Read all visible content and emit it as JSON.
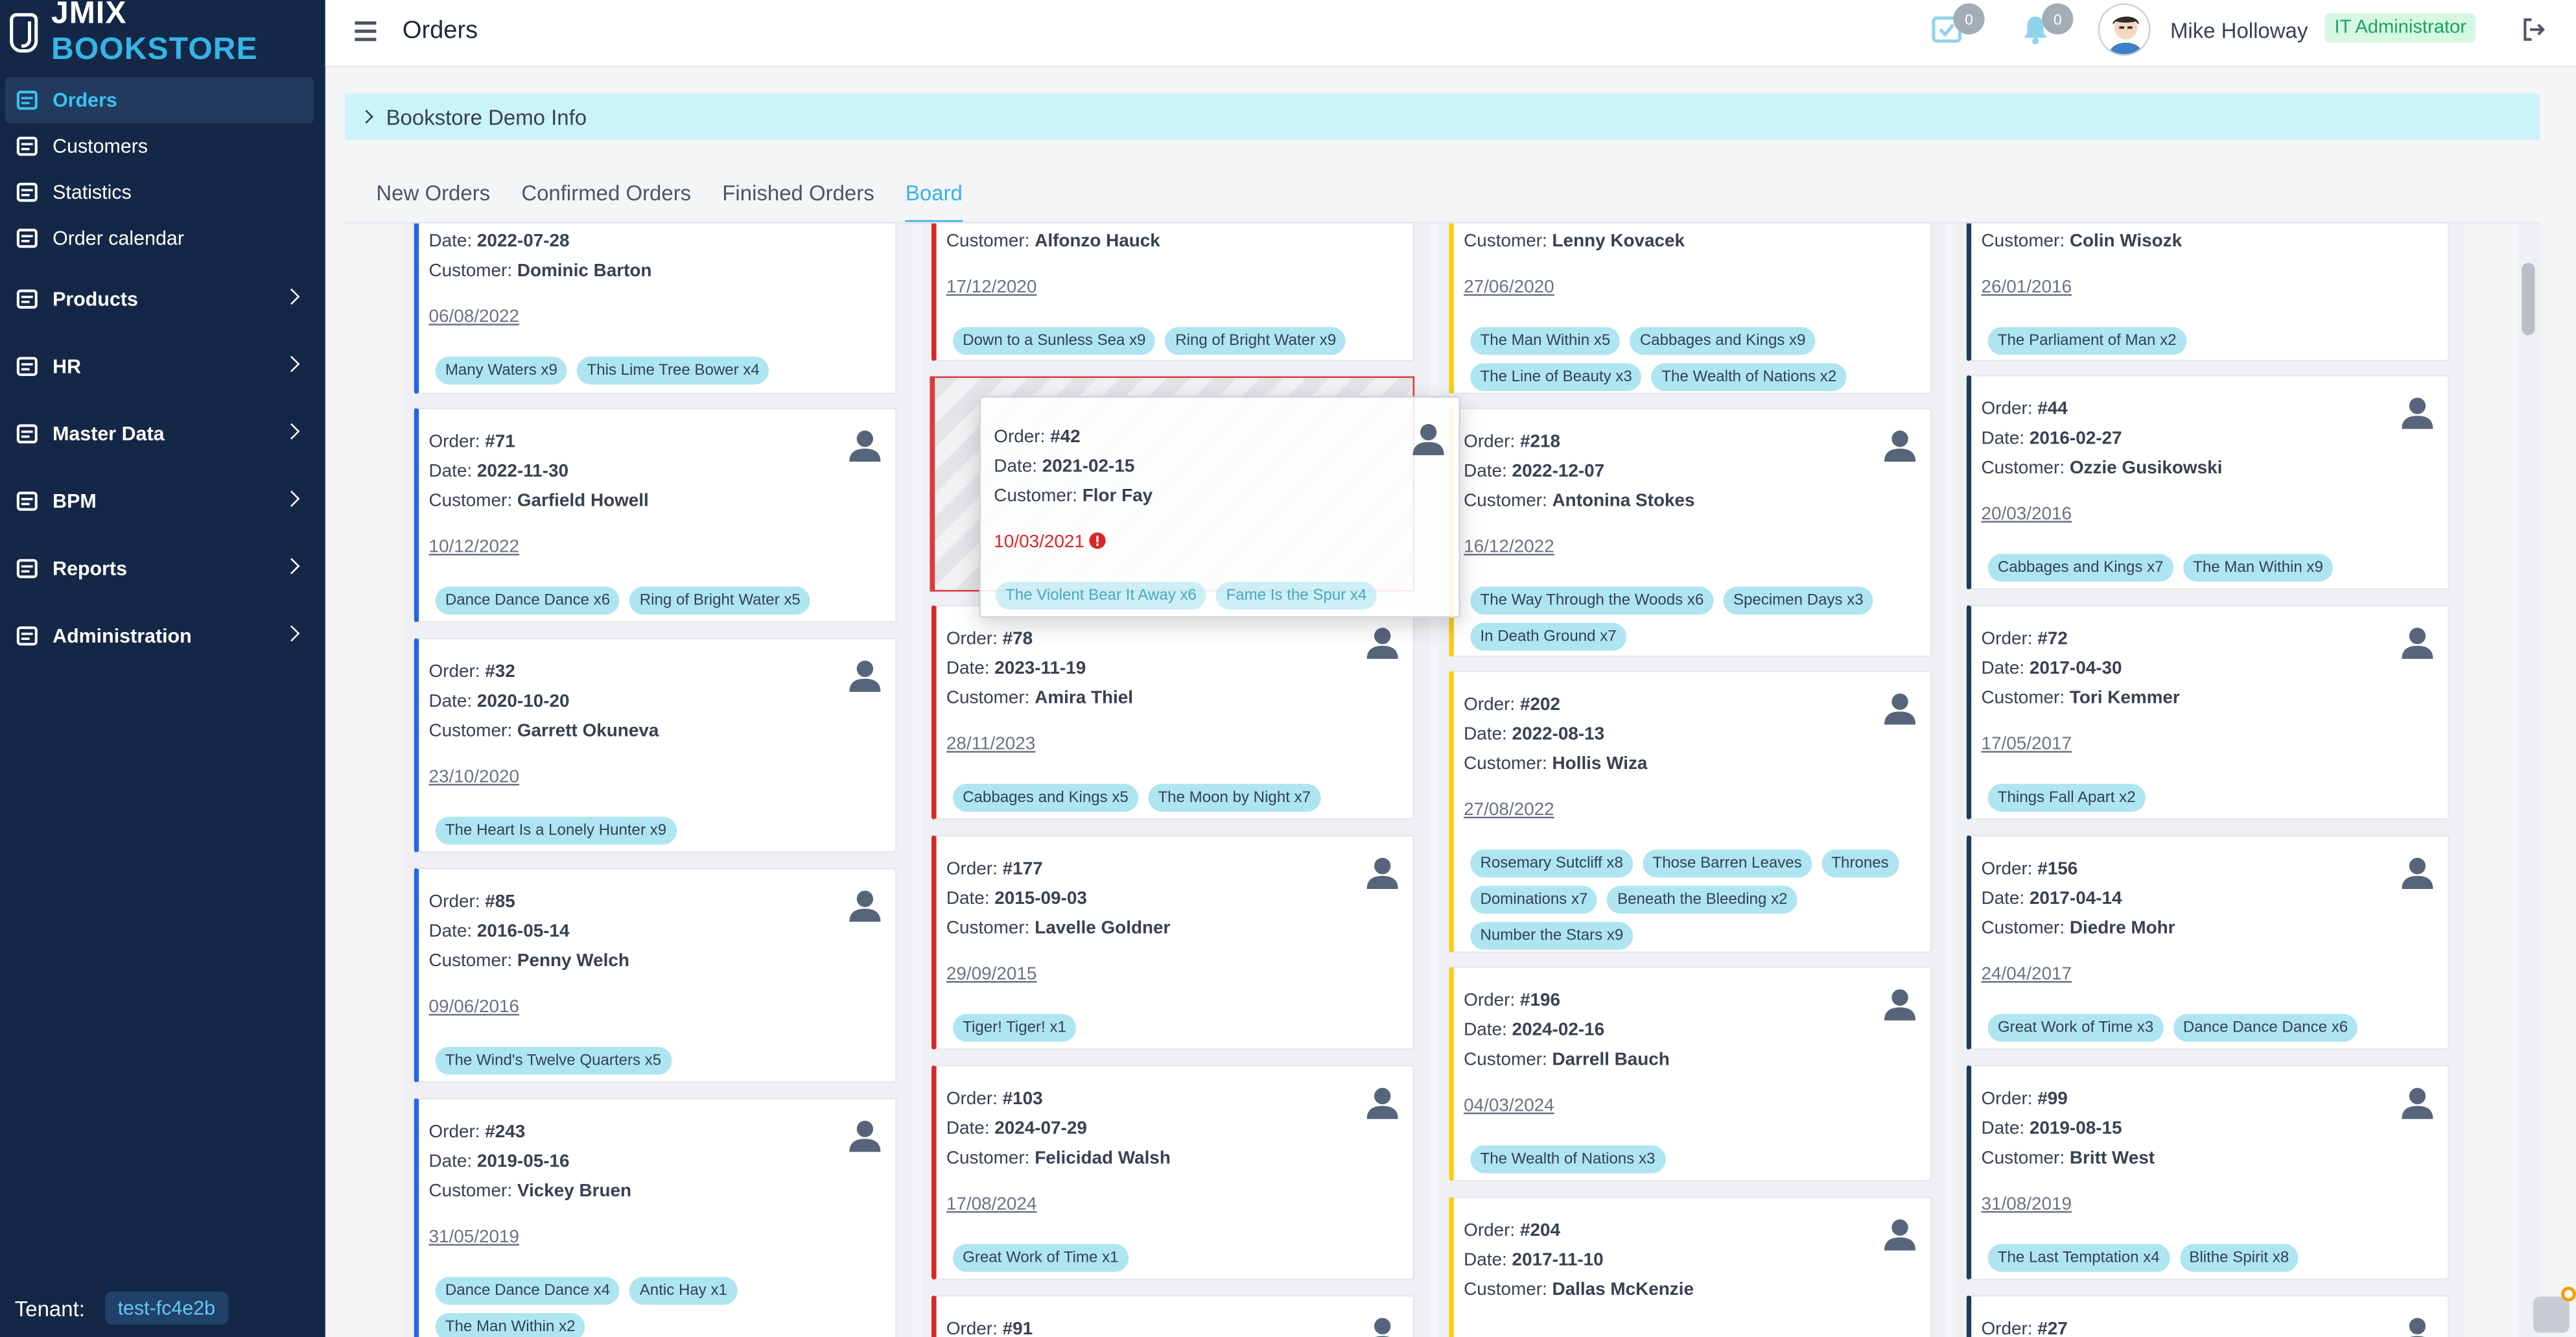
{
  "app": {
    "brand_a": "JMIX",
    "brand_b": "BOOKSTORE"
  },
  "sidebar": {
    "items": [
      {
        "label": "Orders",
        "icon": "cart-icon"
      },
      {
        "label": "Customers",
        "icon": "id-card-icon"
      },
      {
        "label": "Statistics",
        "icon": "chart-icon"
      },
      {
        "label": "Order calendar",
        "icon": "calendar-icon"
      },
      {
        "label": "Products",
        "icon": "book-icon"
      },
      {
        "label": "HR",
        "icon": "users-icon"
      },
      {
        "label": "Master Data",
        "icon": "list-icon"
      },
      {
        "label": "BPM",
        "icon": "share-icon"
      },
      {
        "label": "Reports",
        "icon": "report-icon"
      },
      {
        "label": "Administration",
        "icon": "cogs-icon"
      }
    ],
    "tenant_label": "Tenant:",
    "tenant_value": "test-fc4e2b"
  },
  "header": {
    "title": "Orders",
    "tasks_count": "0",
    "notifications_count": "0",
    "user_name": "Mike Holloway",
    "role": "IT Administrator"
  },
  "info_bar": {
    "label": "Bookstore Demo Info"
  },
  "tabs": [
    "New Orders",
    "Confirmed Orders",
    "Finished Orders",
    "Board"
  ],
  "labels": {
    "order": "Order:",
    "date": "Date:",
    "customer": "Customer:"
  },
  "colors": {
    "accent": "#35b4e5",
    "sidebar": "#142747",
    "blue": "#2563eb",
    "red": "#dc2626",
    "yellow": "#facc15",
    "navy": "#1e3a5f"
  },
  "columns": [
    {
      "cards": [
        {
          "date": "2022-07-28",
          "customer": "Dominic Barton",
          "due": "06/08/2022",
          "books": [
            "Many Waters x9",
            "This Lime Tree Bower x4"
          ]
        },
        {
          "order": "#71",
          "date": "2022-11-30",
          "customer": "Garfield Howell",
          "due": "10/12/2022",
          "books": [
            "Dance Dance Dance x6",
            "Ring of Bright Water x5"
          ]
        },
        {
          "order": "#32",
          "date": "2020-10-20",
          "customer": "Garrett Okuneva",
          "due": "23/10/2020",
          "books": [
            "The Heart Is a Lonely Hunter x9"
          ]
        },
        {
          "order": "#85",
          "date": "2016-05-14",
          "customer": "Penny Welch",
          "due": "09/06/2016",
          "books": [
            "The Wind's Twelve Quarters x5"
          ]
        },
        {
          "order": "#243",
          "date": "2019-05-16",
          "customer": "Vickey Bruen",
          "due": "31/05/2019",
          "books": [
            "Dance Dance Dance x4",
            "Antic Hay x1",
            "The Man Within x2"
          ]
        }
      ]
    },
    {
      "cards": [
        {
          "customer": "Alfonzo Hauck",
          "due": "17/12/2020",
          "books": [
            "Down to a Sunless Sea x9",
            "Ring of Bright Water x9"
          ]
        },
        {
          "order": "#78",
          "date": "2023-11-19",
          "customer": "Amira Thiel",
          "due": "28/11/2023",
          "books": [
            "Cabbages and Kings x5",
            "The Moon by Night x7"
          ]
        },
        {
          "order": "#177",
          "date": "2015-09-03",
          "customer": "Lavelle Goldner",
          "due": "29/09/2015",
          "books": [
            "Tiger! Tiger! x1"
          ]
        },
        {
          "order": "#103",
          "date": "2024-07-29",
          "customer": "Felicidad Walsh",
          "due": "17/08/2024",
          "books": [
            "Great Work of Time x1"
          ]
        },
        {
          "order": "#91"
        }
      ]
    },
    {
      "cards": [
        {
          "customer": "Lenny Kovacek",
          "due": "27/06/2020",
          "books": [
            "The Man Within x5",
            "Cabbages and Kings x9",
            "The Line of Beauty x3",
            "The Wealth of Nations x2"
          ]
        },
        {
          "order": "#218",
          "date": "2022-12-07",
          "customer": "Antonina Stokes",
          "due": "16/12/2022",
          "books": [
            "The Way Through the Woods x6",
            "Specimen Days x3",
            "In Death Ground x7"
          ]
        },
        {
          "order": "#202",
          "date": "2022-08-13",
          "customer": "Hollis Wiza",
          "due": "27/08/2022",
          "books": [
            "Rosemary Sutcliff x8",
            "Those Barren Leaves",
            "Thrones",
            "Dominations x7",
            "Beneath the Bleeding x2",
            "Number the Stars x9"
          ]
        },
        {
          "order": "#196",
          "date": "2024-02-16",
          "customer": "Darrell Bauch",
          "due": "04/03/2024",
          "books": [
            "The Wealth of Nations x3"
          ]
        },
        {
          "order": "#204",
          "date": "2017-11-10",
          "customer": "Dallas McKenzie"
        }
      ]
    },
    {
      "cards": [
        {
          "customer": "Colin Wisozk",
          "due": "26/01/2016",
          "books": [
            "The Parliament of Man x2"
          ]
        },
        {
          "order": "#44",
          "date": "2016-02-27",
          "customer": "Ozzie Gusikowski",
          "due": "20/03/2016",
          "books": [
            "Cabbages and Kings x7",
            "The Man Within x9"
          ]
        },
        {
          "order": "#72",
          "date": "2017-04-30",
          "customer": "Tori Kemmer",
          "due": "17/05/2017",
          "books": [
            "Things Fall Apart x2"
          ]
        },
        {
          "order": "#156",
          "date": "2017-04-14",
          "customer": "Diedre Mohr",
          "due": "24/04/2017",
          "books": [
            "Great Work of Time x3",
            "Dance Dance Dance x6"
          ]
        },
        {
          "order": "#99",
          "date": "2019-08-15",
          "customer": "Britt West",
          "due": "31/08/2019",
          "books": [
            "The Last Temptation x4",
            "Blithe Spirit x8"
          ]
        },
        {
          "order": "#27"
        }
      ]
    }
  ],
  "dragged_card": {
    "order": "#42",
    "date": "2021-02-15",
    "customer": "Flor Fay",
    "due": "10/03/2021",
    "books": [
      "The Violent Bear It Away x6",
      "Fame Is the Spur x4"
    ]
  }
}
